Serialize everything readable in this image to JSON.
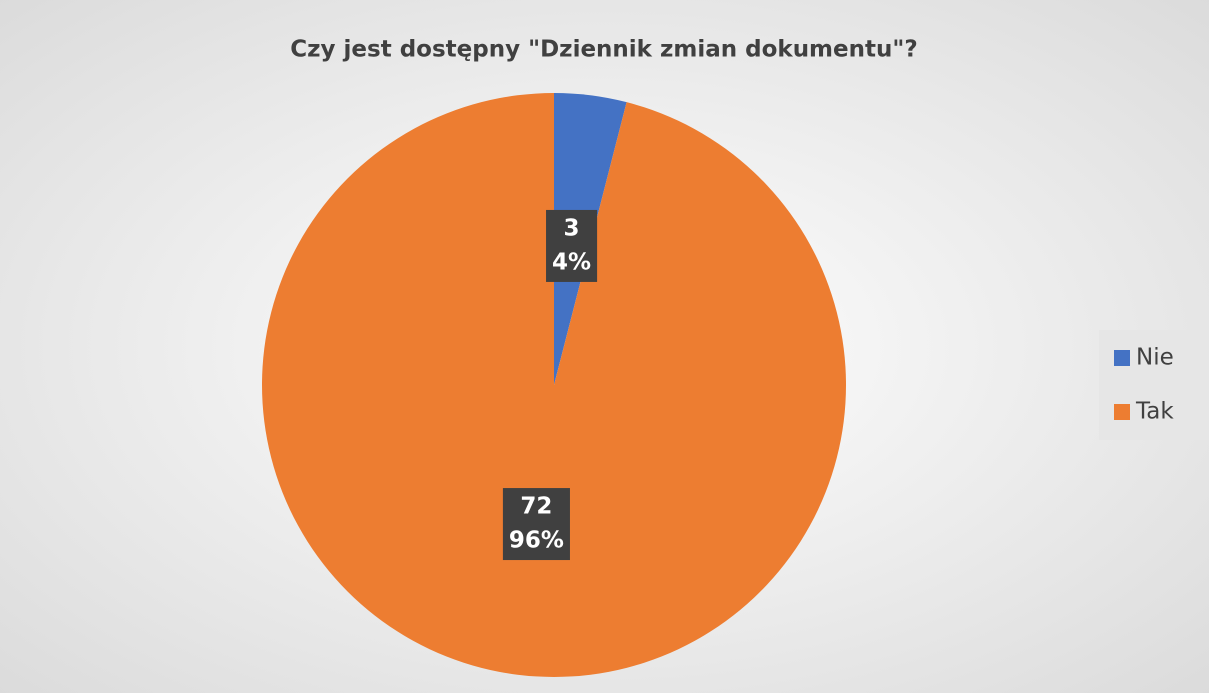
{
  "chart_data": {
    "type": "pie",
    "title": "Czy jest dostępny \"Dziennik zmian dokumentu\"?",
    "categories": [
      "Nie",
      "Tak"
    ],
    "values": [
      3,
      72
    ],
    "percentages": [
      4,
      96
    ],
    "percentage_labels": [
      "4%",
      "96%"
    ],
    "colors": [
      "#4472c4",
      "#ed7d31"
    ],
    "legend": "right"
  }
}
